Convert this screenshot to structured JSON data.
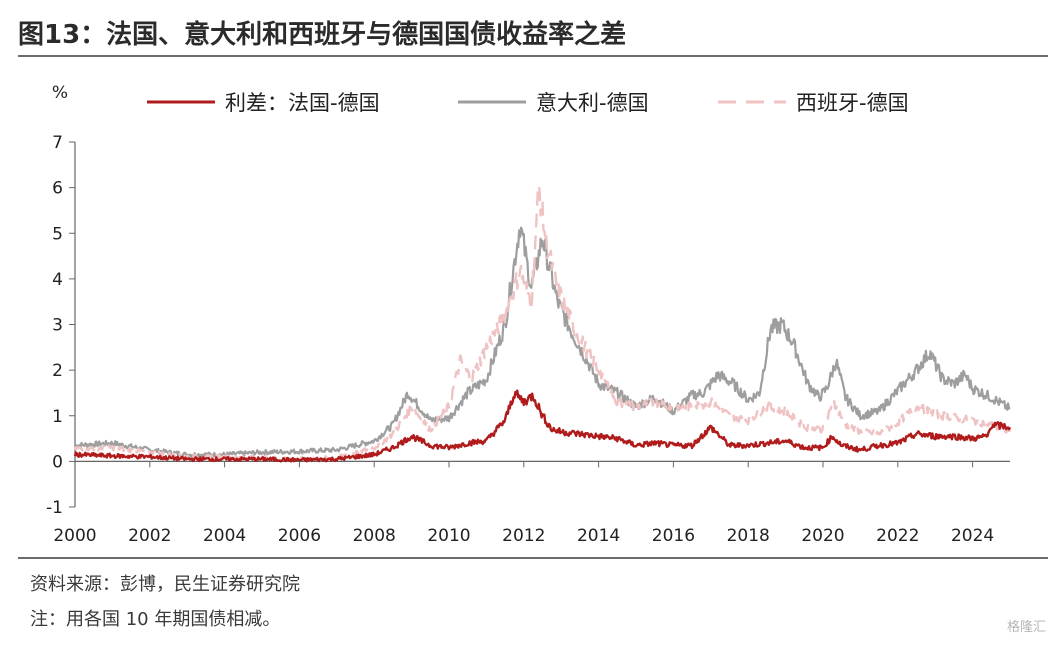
{
  "title": "图13：法国、意大利和西班牙与德国国债收益率之差",
  "footer": {
    "source": "资料来源：彭博，民生证券研究院",
    "note": "注：用各国 10 年期国债相减。",
    "watermark": "格隆汇"
  },
  "chart_data": {
    "type": "line",
    "title": "图13：法国、意大利和西班牙与德国国债收益率之差",
    "ylabel": "%",
    "xlabel": "",
    "ylim": [
      -1,
      7
    ],
    "xlim": [
      2000,
      2025
    ],
    "y_ticks": [
      "-1",
      "0",
      "1",
      "2",
      "3",
      "4",
      "5",
      "6",
      "7"
    ],
    "x_ticks": [
      "2000",
      "2002",
      "2004",
      "2006",
      "2008",
      "2010",
      "2012",
      "2014",
      "2016",
      "2018",
      "2020",
      "2022",
      "2024"
    ],
    "legend_position": "top",
    "grid": false,
    "series": [
      {
        "name": "利差：法国-德国",
        "color": "#b01c1c",
        "style": "solid",
        "x": [
          2000.0,
          2001.0,
          2002.0,
          2003.0,
          2004.0,
          2005.0,
          2006.0,
          2007.0,
          2008.0,
          2008.5,
          2009.0,
          2009.5,
          2010.0,
          2010.5,
          2011.0,
          2011.5,
          2011.75,
          2012.0,
          2012.25,
          2012.5,
          2012.75,
          2013.0,
          2013.5,
          2014.0,
          2014.5,
          2015.0,
          2015.5,
          2016.0,
          2016.5,
          2017.0,
          2017.25,
          2017.5,
          2018.0,
          2018.5,
          2019.0,
          2019.5,
          2020.0,
          2020.25,
          2020.5,
          2021.0,
          2021.5,
          2022.0,
          2022.5,
          2023.0,
          2023.5,
          2024.0,
          2024.4,
          2024.5,
          2025.0
        ],
        "values": [
          0.15,
          0.12,
          0.1,
          0.05,
          0.05,
          0.05,
          0.03,
          0.05,
          0.15,
          0.3,
          0.55,
          0.35,
          0.3,
          0.4,
          0.45,
          0.9,
          1.5,
          1.3,
          1.45,
          1.0,
          0.7,
          0.65,
          0.6,
          0.55,
          0.5,
          0.35,
          0.4,
          0.35,
          0.35,
          0.75,
          0.55,
          0.35,
          0.35,
          0.4,
          0.45,
          0.3,
          0.3,
          0.55,
          0.35,
          0.25,
          0.35,
          0.4,
          0.6,
          0.55,
          0.55,
          0.5,
          0.55,
          0.8,
          0.75
        ]
      },
      {
        "name": "意大利-德国",
        "color": "#9e9e9e",
        "style": "solid",
        "x": [
          2000.0,
          2001.0,
          2002.0,
          2003.0,
          2004.0,
          2005.0,
          2006.0,
          2007.0,
          2008.0,
          2008.5,
          2008.9,
          2009.5,
          2010.0,
          2010.5,
          2011.0,
          2011.5,
          2011.9,
          2012.2,
          2012.5,
          2012.9,
          2013.3,
          2013.7,
          2014.0,
          2014.5,
          2015.0,
          2015.5,
          2016.0,
          2016.5,
          2016.8,
          2017.2,
          2017.6,
          2018.0,
          2018.3,
          2018.6,
          2018.9,
          2019.2,
          2019.6,
          2019.9,
          2020.1,
          2020.35,
          2020.6,
          2021.0,
          2021.5,
          2022.0,
          2022.5,
          2022.85,
          2023.2,
          2023.5,
          2023.8,
          2024.0,
          2024.5,
          2025.0
        ],
        "values": [
          0.35,
          0.4,
          0.25,
          0.15,
          0.15,
          0.2,
          0.22,
          0.25,
          0.45,
          0.8,
          1.5,
          0.9,
          0.95,
          1.5,
          1.8,
          3.0,
          5.2,
          3.8,
          4.9,
          3.5,
          2.8,
          2.2,
          1.7,
          1.5,
          1.2,
          1.4,
          1.1,
          1.45,
          1.5,
          1.9,
          1.7,
          1.35,
          1.5,
          2.9,
          3.0,
          2.6,
          1.7,
          1.4,
          1.6,
          2.2,
          1.4,
          1.0,
          1.1,
          1.55,
          2.0,
          2.4,
          1.8,
          1.7,
          1.9,
          1.6,
          1.4,
          1.15
        ]
      },
      {
        "name": "西班牙-德国",
        "color": "#efc3c3",
        "style": "dashed",
        "x": [
          2000.0,
          2001.0,
          2002.0,
          2003.0,
          2004.0,
          2005.0,
          2006.0,
          2007.0,
          2008.0,
          2008.5,
          2009.0,
          2009.5,
          2010.0,
          2010.3,
          2010.6,
          2011.0,
          2011.5,
          2011.9,
          2012.2,
          2012.4,
          2012.6,
          2012.9,
          2013.3,
          2013.7,
          2014.0,
          2014.5,
          2015.0,
          2015.5,
          2016.0,
          2016.5,
          2017.0,
          2017.5,
          2018.0,
          2018.5,
          2019.0,
          2019.5,
          2020.0,
          2020.3,
          2020.6,
          2021.0,
          2021.5,
          2022.0,
          2022.5,
          2022.8,
          2023.2,
          2023.6,
          2024.0,
          2024.5,
          2025.0
        ],
        "values": [
          0.28,
          0.3,
          0.2,
          0.1,
          0.1,
          0.08,
          0.05,
          0.08,
          0.3,
          0.6,
          1.2,
          0.7,
          1.2,
          2.2,
          1.8,
          2.5,
          3.2,
          4.2,
          3.5,
          6.0,
          4.8,
          3.8,
          3.0,
          2.4,
          2.0,
          1.3,
          1.2,
          1.3,
          1.2,
          1.2,
          1.3,
          1.0,
          0.9,
          1.2,
          1.1,
          0.75,
          0.7,
          1.3,
          0.8,
          0.65,
          0.6,
          0.85,
          1.2,
          1.1,
          1.0,
          0.95,
          0.9,
          0.8,
          0.65
        ]
      }
    ]
  }
}
